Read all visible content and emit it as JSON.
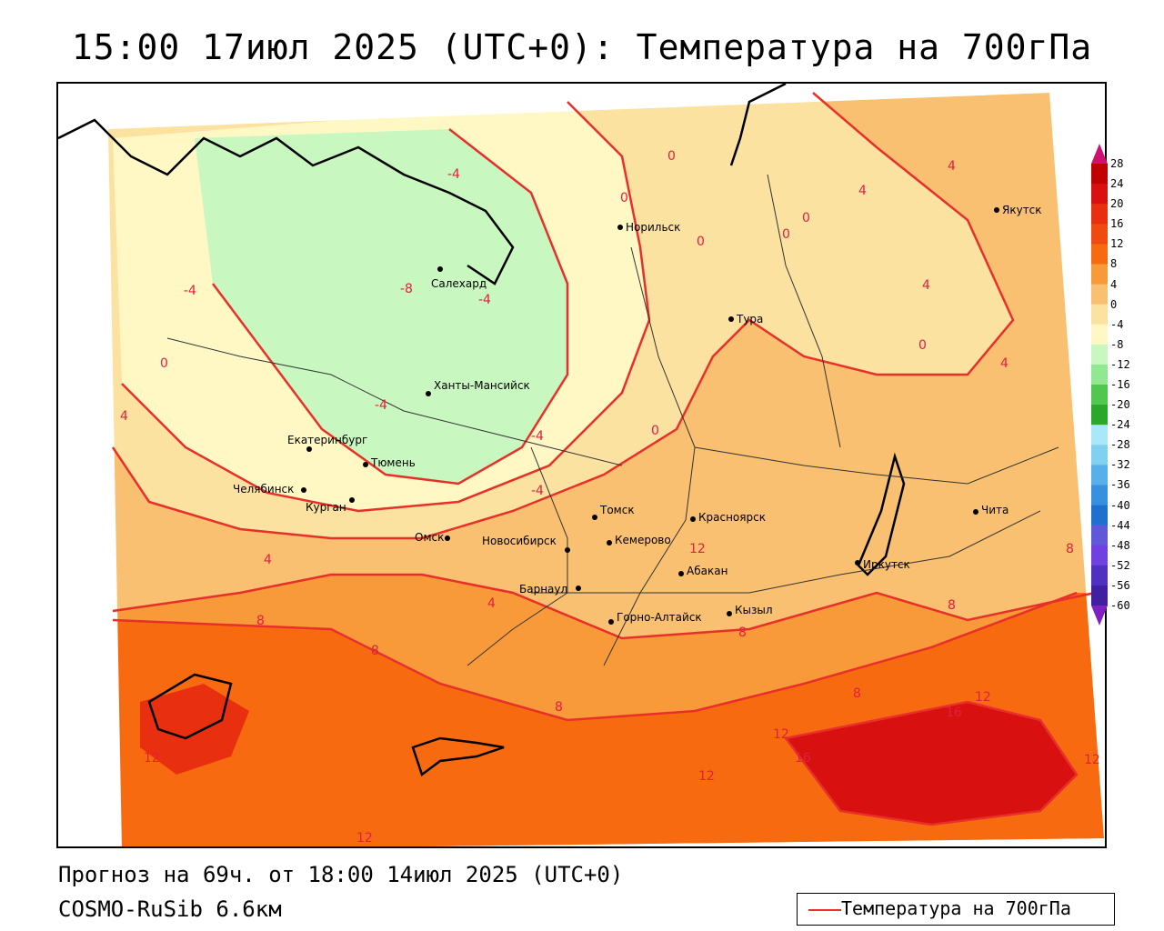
{
  "title": "15:00 17июл 2025 (UTC+0): Температура на 700гПа",
  "forecast": "Прогноз на 69ч. от 18:00 14июл 2025 (UTC+0)",
  "model": "COSMO-RuSib 6.6км",
  "legend_label": "Температура на 700гПа",
  "colorbar": {
    "levels": [
      "28",
      "24",
      "20",
      "16",
      "12",
      "8",
      "4",
      "0",
      "-4",
      "-8",
      "-12",
      "-16",
      "-20",
      "-24",
      "-28",
      "-32",
      "-36",
      "-40",
      "-44",
      "-48",
      "-52",
      "-56",
      "-60"
    ],
    "colors": [
      "#c00000",
      "#d81010",
      "#e83010",
      "#f04a10",
      "#f86a10",
      "#f89a3a",
      "#f8c070",
      "#fbe2a0",
      "#fff8c4",
      "#c8f8c0",
      "#90e890",
      "#50c850",
      "#2aa82a",
      "#a8e8f8",
      "#80d0f0",
      "#58b0e8",
      "#3890e0",
      "#2070d0",
      "#6058d8",
      "#7040e0",
      "#5030c0",
      "#4020a0",
      "#300888"
    ]
  },
  "cities": [
    {
      "name": "Норильск"
    },
    {
      "name": "Якутск"
    },
    {
      "name": "Салехард"
    },
    {
      "name": "Тура"
    },
    {
      "name": "Ханты-Мансийск"
    },
    {
      "name": "Екатеринбург"
    },
    {
      "name": "Тюмень"
    },
    {
      "name": "Челябинск"
    },
    {
      "name": "Курган"
    },
    {
      "name": "Омск"
    },
    {
      "name": "Томск"
    },
    {
      "name": "Красноярск"
    },
    {
      "name": "Новосибирск"
    },
    {
      "name": "Кемерово"
    },
    {
      "name": "Барнаул"
    },
    {
      "name": "Абакан"
    },
    {
      "name": "Горно-Алтайск"
    },
    {
      "name": "Кызыл"
    },
    {
      "name": "Иркутск"
    },
    {
      "name": "Чита"
    }
  ],
  "contour_labels": [
    "0",
    "0",
    "0",
    "0",
    "0",
    "0",
    "0",
    "0",
    "4",
    "4",
    "4",
    "4",
    "4",
    "4",
    "4",
    "-4",
    "-4",
    "-4",
    "-4",
    "-4",
    "-4",
    "-8",
    "8",
    "8",
    "8",
    "8",
    "8",
    "8",
    "8",
    "12",
    "12",
    "12",
    "12",
    "12",
    "12",
    "16",
    "16"
  ]
}
